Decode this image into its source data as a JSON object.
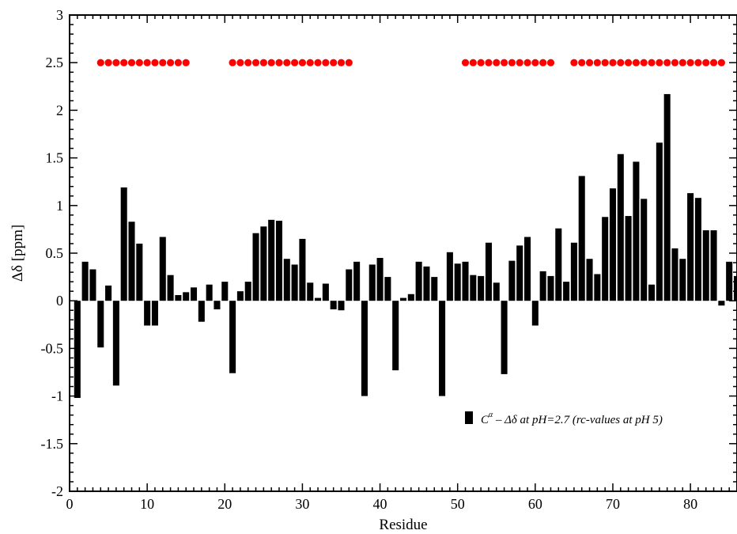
{
  "chart_data": {
    "type": "bar",
    "xlabel": "Residue",
    "ylabel": "Δδ  [ppm]",
    "xlim": [
      0,
      86
    ],
    "ylim": [
      -2,
      3
    ],
    "x_ticks": [
      0,
      10,
      20,
      30,
      40,
      50,
      60,
      70,
      80
    ],
    "x_tick_labels": [
      "0",
      "10",
      "20",
      "30",
      "40",
      "50",
      "60",
      "70",
      "80"
    ],
    "y_ticks": [
      -2,
      -1.5,
      -1,
      -0.5,
      0,
      0.5,
      1,
      1.5,
      2,
      2.5,
      3
    ],
    "y_tick_labels": [
      "-2",
      "-1.5",
      "-1",
      "-0.5",
      "0",
      "0.5",
      "1",
      "1.5",
      "2",
      "2.5",
      "3"
    ],
    "bar_color": "#000000",
    "series": [
      {
        "name": "Cα – Δδ at pH=2.7 (rc-values at pH 5)",
        "x": [
          1,
          2,
          3,
          4,
          5,
          6,
          7,
          8,
          9,
          10,
          11,
          12,
          13,
          14,
          15,
          16,
          17,
          18,
          19,
          20,
          21,
          22,
          23,
          24,
          25,
          26,
          27,
          28,
          29,
          30,
          31,
          32,
          33,
          34,
          35,
          36,
          37,
          38,
          39,
          40,
          41,
          42,
          43,
          44,
          45,
          46,
          47,
          48,
          49,
          50,
          51,
          52,
          53,
          54,
          55,
          56,
          57,
          58,
          59,
          60,
          61,
          62,
          63,
          64,
          65,
          66,
          67,
          68,
          69,
          70,
          71,
          72,
          73,
          74,
          75,
          76,
          77,
          78,
          79,
          80,
          81,
          82,
          83,
          84,
          85,
          86
        ],
        "values": [
          -1.02,
          0.41,
          0.33,
          -0.49,
          0.16,
          -0.89,
          1.19,
          0.83,
          0.6,
          -0.26,
          -0.26,
          0.67,
          0.27,
          0.06,
          0.09,
          0.14,
          -0.22,
          0.17,
          -0.09,
          0.2,
          -0.76,
          0.1,
          0.2,
          0.71,
          0.78,
          0.85,
          0.84,
          0.44,
          0.38,
          0.65,
          0.19,
          0.03,
          0.18,
          -0.09,
          -0.1,
          0.33,
          0.41,
          -1.0,
          0.38,
          0.45,
          0.25,
          -0.73,
          0.03,
          0.07,
          0.41,
          0.36,
          0.25,
          -1.0,
          0.51,
          0.39,
          0.41,
          0.27,
          0.26,
          0.61,
          0.19,
          -0.77,
          0.42,
          0.58,
          0.67,
          -0.26,
          0.31,
          0.26,
          0.76,
          0.2,
          0.61,
          1.31,
          0.44,
          0.28,
          0.88,
          1.18,
          1.54,
          0.89,
          1.46,
          1.07,
          0.17,
          1.66,
          2.17,
          0.55,
          0.44,
          1.13,
          1.08,
          0.74,
          0.74,
          -0.05,
          0.41,
          0.26
        ]
      }
    ],
    "markers": {
      "name": "segments",
      "color": "#ff0000",
      "y": 2.5,
      "x": [
        4,
        5,
        6,
        7,
        8,
        9,
        10,
        11,
        12,
        13,
        14,
        15,
        21,
        22,
        23,
        24,
        25,
        26,
        27,
        28,
        29,
        30,
        31,
        32,
        33,
        34,
        35,
        36,
        51,
        52,
        53,
        54,
        55,
        56,
        57,
        58,
        59,
        60,
        61,
        62,
        65,
        66,
        67,
        68,
        69,
        70,
        71,
        72,
        73,
        74,
        75,
        76,
        77,
        78,
        79,
        80,
        81,
        82,
        83,
        84
      ]
    },
    "legend": {
      "position": "bottom-right",
      "prefix": "C",
      "sup": "α",
      "text": " – Δδ at pH=2.7 (rc-values at pH 5)"
    }
  }
}
